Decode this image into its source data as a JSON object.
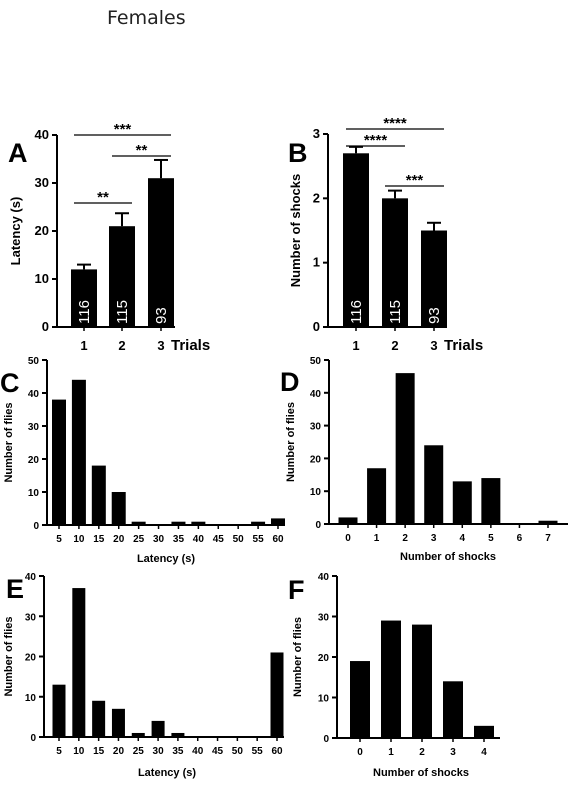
{
  "title": "Females",
  "chart_data": [
    {
      "panel": "A",
      "type": "bar",
      "categories": [
        "1",
        "2",
        "3"
      ],
      "values": [
        12,
        21,
        31
      ],
      "errors": [
        1.0,
        2.7,
        3.8
      ],
      "n_labels": [
        "116",
        "115",
        "93"
      ],
      "ylabel": "Latency (s)",
      "xlabel": "Trials",
      "ylim": [
        0,
        40
      ],
      "yticks": [
        "0",
        "10",
        "20",
        "30",
        "40"
      ],
      "significance": [
        {
          "from": 0,
          "to": 1,
          "label": "**"
        },
        {
          "from": 1,
          "to": 2,
          "label": "**"
        },
        {
          "from": 0,
          "to": 2,
          "label": "***"
        }
      ]
    },
    {
      "panel": "B",
      "type": "bar",
      "categories": [
        "1",
        "2",
        "3"
      ],
      "values": [
        2.7,
        2.0,
        1.5
      ],
      "errors": [
        0.1,
        0.12,
        0.12
      ],
      "n_labels": [
        "116",
        "115",
        "93"
      ],
      "ylabel": "Number of shocks",
      "xlabel": "Trials",
      "ylim": [
        0,
        3
      ],
      "yticks": [
        "0",
        "1",
        "2",
        "3"
      ],
      "significance": [
        {
          "from": 0,
          "to": 1,
          "label": "****"
        },
        {
          "from": 1,
          "to": 2,
          "label": "***"
        },
        {
          "from": 0,
          "to": 2,
          "label": "****"
        }
      ]
    },
    {
      "panel": "C",
      "type": "bar",
      "categories": [
        "5",
        "10",
        "15",
        "20",
        "25",
        "30",
        "35",
        "40",
        "45",
        "50",
        "55",
        "60"
      ],
      "values": [
        38,
        44,
        18,
        10,
        1,
        0,
        1,
        1,
        0,
        0,
        1,
        2
      ],
      "ylabel": "Number of flies",
      "xlabel": "Latency (s)",
      "ylim": [
        0,
        50
      ],
      "yticks": [
        "0",
        "10",
        "20",
        "30",
        "40",
        "50"
      ]
    },
    {
      "panel": "D",
      "type": "bar",
      "categories": [
        "0",
        "1",
        "2",
        "3",
        "4",
        "5",
        "6",
        "7"
      ],
      "values": [
        2,
        17,
        46,
        24,
        13,
        14,
        0,
        1
      ],
      "ylabel": "Number of flies",
      "xlabel": "Number of shocks",
      "ylim": [
        0,
        50
      ],
      "yticks": [
        "0",
        "10",
        "20",
        "30",
        "40",
        "50"
      ]
    },
    {
      "panel": "E",
      "type": "bar",
      "categories": [
        "5",
        "10",
        "15",
        "20",
        "25",
        "30",
        "35",
        "40",
        "45",
        "50",
        "55",
        "60"
      ],
      "values": [
        13,
        37,
        9,
        7,
        1,
        4,
        1,
        0,
        0,
        0,
        0,
        21
      ],
      "ylabel": "Number of flies",
      "xlabel": "Latency (s)",
      "ylim": [
        0,
        40
      ],
      "yticks": [
        "0",
        "10",
        "20",
        "30",
        "40"
      ]
    },
    {
      "panel": "F",
      "type": "bar",
      "categories": [
        "0",
        "1",
        "2",
        "3",
        "4"
      ],
      "values": [
        19,
        29,
        28,
        14,
        3
      ],
      "ylabel": "Number of flies",
      "xlabel": "Number of shocks",
      "ylim": [
        0,
        40
      ],
      "yticks": [
        "0",
        "10",
        "20",
        "30",
        "40"
      ]
    }
  ]
}
